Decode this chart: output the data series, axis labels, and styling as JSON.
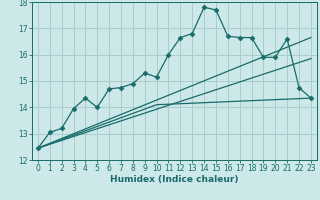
{
  "xlabel": "Humidex (Indice chaleur)",
  "background_color": "#cce8e8",
  "grid_color": "#aacccc",
  "line_color": "#1a6b6b",
  "xlim": [
    -0.5,
    23.5
  ],
  "ylim": [
    12,
    18
  ],
  "yticks": [
    12,
    13,
    14,
    15,
    16,
    17,
    18
  ],
  "xticks": [
    0,
    1,
    2,
    3,
    4,
    5,
    6,
    7,
    8,
    9,
    10,
    11,
    12,
    13,
    14,
    15,
    16,
    17,
    18,
    19,
    20,
    21,
    22,
    23
  ],
  "series_main": {
    "x": [
      0,
      1,
      2,
      3,
      4,
      5,
      6,
      7,
      8,
      9,
      10,
      11,
      12,
      13,
      14,
      15,
      16,
      17,
      18,
      19,
      20,
      21,
      22,
      23
    ],
    "y": [
      12.45,
      13.05,
      13.2,
      13.95,
      14.35,
      14.0,
      14.7,
      14.75,
      14.9,
      15.3,
      15.15,
      16.0,
      16.65,
      16.8,
      17.8,
      17.7,
      16.7,
      16.65,
      16.65,
      15.9,
      15.9,
      16.6,
      14.75,
      14.35
    ],
    "marker": "D",
    "markersize": 2.5
  },
  "series_line1": {
    "x": [
      0,
      5,
      23
    ],
    "y": [
      12.45,
      14.0,
      16.65
    ]
  },
  "series_line2": {
    "x": [
      0,
      19,
      23
    ],
    "y": [
      12.45,
      15.9,
      15.85
    ]
  },
  "series_line3": {
    "x": [
      0,
      10,
      23
    ],
    "y": [
      12.45,
      14.1,
      14.35
    ]
  }
}
